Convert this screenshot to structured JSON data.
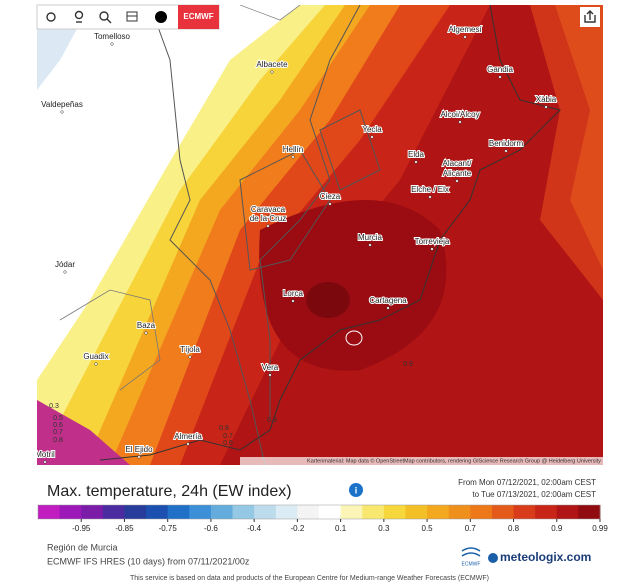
{
  "toolbar": {
    "model_button": "ECMWF"
  },
  "map": {
    "places": [
      "Tomelloso",
      "Valdepeñas",
      "Albacete",
      "Hellín",
      "Yecla",
      "Algemesí",
      "Gandia",
      "Xàbia",
      "Alcoi/Alcoy",
      "Benidorm",
      "Elda",
      "Alacant/",
      "Alicante",
      "Elche / Elx",
      "Cieza",
      "Caravaca",
      "de la Cruz",
      "Murcia",
      "Torrevieja",
      "Jódar",
      "Lorca",
      "Cartagena",
      "Baza",
      "Guadix",
      "Tíjola",
      "Vera",
      "Almería",
      "El Ejido",
      "Motril"
    ],
    "contour_labels": [
      "0.3",
      "0.5",
      "0.6",
      "0.7",
      "0.8",
      "0.8",
      "0.7",
      "0.6",
      "0.9",
      "0.9"
    ],
    "attribution": "Kartenmaterial: Map data © OpenStreetMap contributors, rendering GIScience Research Group @ Heidelberg University"
  },
  "legend": {
    "title": "Max. temperature, 24h (EW index)",
    "period_from": "From Mon 07/12/2021, 02:00am CEST",
    "period_to": "to Tue 07/13/2021, 02:00am CEST",
    "ticks": [
      -0.95,
      -0.85,
      -0.75,
      -0.6,
      -0.4,
      -0.2,
      0.1,
      0.3,
      0.5,
      0.7,
      0.8,
      0.9,
      0.99
    ],
    "colors": [
      "#c01cc0",
      "#9c18b8",
      "#7a1ca8",
      "#4a2ca0",
      "#283c9c",
      "#1c50b0",
      "#2070c8",
      "#3c90d8",
      "#64acdc",
      "#94c8e4",
      "#bcdcec",
      "#dcecf4",
      "#f4f4f4",
      "#ffffff",
      "#fbf5b8",
      "#f8e870",
      "#f6d83c",
      "#f4c028",
      "#f4a820",
      "#f0901c",
      "#ec781a",
      "#e45a1a",
      "#d83c1a",
      "#c82418",
      "#b01414",
      "#900c10"
    ]
  },
  "footer": {
    "region": "Región de Murcia",
    "model": "ECMWF IFS HRES (10 days) from 07/11/2021/00z",
    "logo_ecmwf": "ECMWF",
    "logo_site": "meteologix.com",
    "disclaimer": "This service is based on data and products of the European Centre for Medium-range Weather Forecasts (ECMWF)"
  }
}
